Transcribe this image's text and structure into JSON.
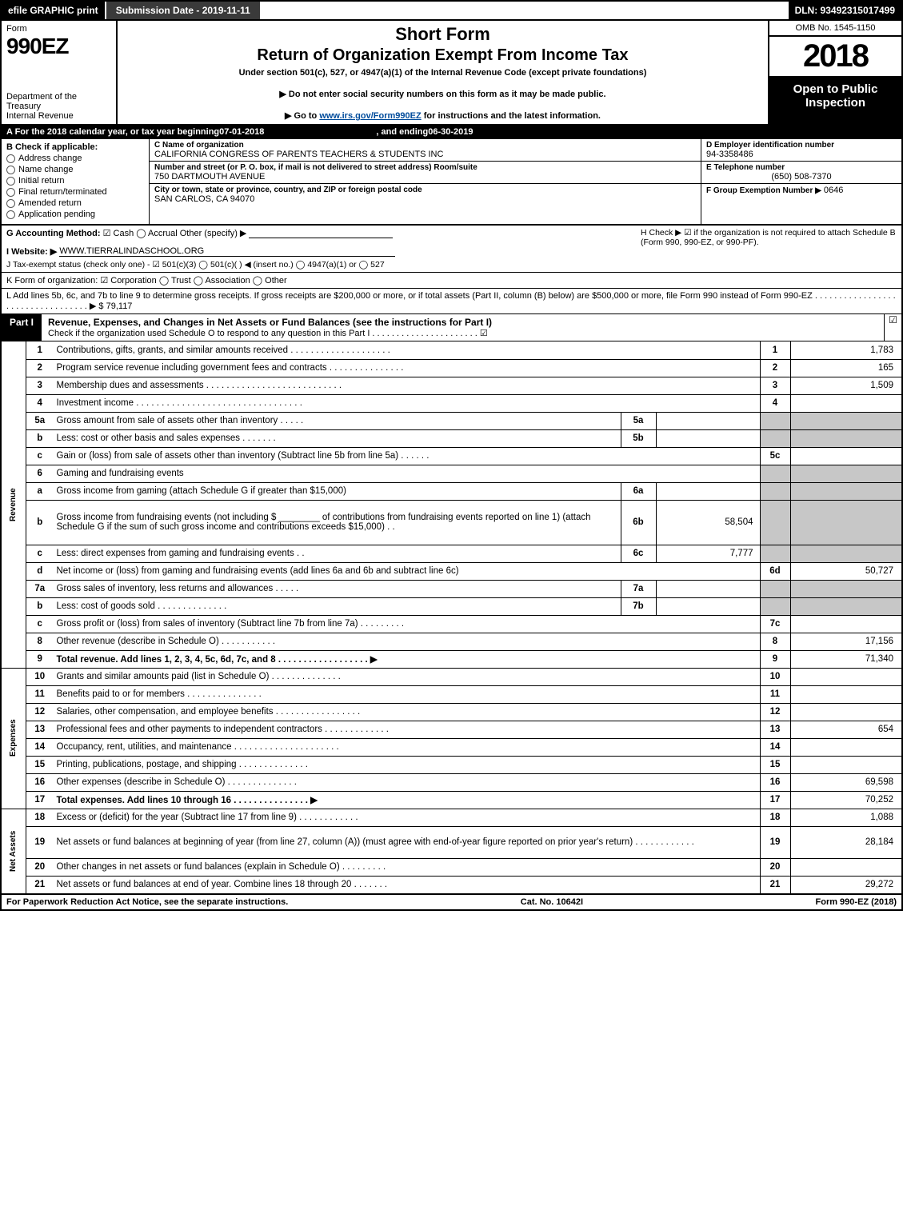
{
  "topbar": {
    "efile": "efile GRAPHIC print",
    "subdate": "Submission Date - 2019-11-11",
    "dln": "DLN: 93492315017499"
  },
  "header": {
    "form_label": "Form",
    "form_number": "990EZ",
    "dept1": "Department of the Treasury",
    "dept2": "Internal Revenue",
    "title1": "Short Form",
    "title2": "Return of Organization Exempt From Income Tax",
    "subtitle": "Under section 501(c), 527, or 4947(a)(1) of the Internal Revenue Code (except private foundations)",
    "note1": "▶ Do not enter social security numbers on this form as it may be made public.",
    "note2_pre": "▶ Go to ",
    "note2_link": "www.irs.gov/Form990EZ",
    "note2_post": " for instructions and the latest information.",
    "omb": "OMB No. 1545-1150",
    "year": "2018",
    "open": "Open to Public Inspection"
  },
  "line_a": {
    "pre": "A  For the 2018 calendar year, or tax year beginning ",
    "begin": "07-01-2018",
    "mid": " , and ending ",
    "end": "06-30-2019"
  },
  "col_b": {
    "heading": "B  Check if applicable:",
    "items": [
      "Address change",
      "Name change",
      "Initial return",
      "Final return/terminated",
      "Amended return",
      "Application pending"
    ]
  },
  "col_c": {
    "name_lbl": "C Name of organization",
    "name_val": "CALIFORNIA CONGRESS OF PARENTS TEACHERS & STUDENTS INC",
    "street_lbl": "Number and street (or P. O. box, if mail is not delivered to street address)      Room/suite",
    "street_val": "750 DARTMOUTH AVENUE",
    "city_lbl": "City or town, state or province, country, and ZIP or foreign postal code",
    "city_val": "SAN CARLOS, CA  94070"
  },
  "col_d": {
    "ein_lbl": "D Employer identification number",
    "ein_val": "94-3358486",
    "tel_lbl": "E Telephone number",
    "tel_val": "(650) 508-7370",
    "grp_lbl": "F Group Exemption Number   ▶",
    "grp_val": "0646"
  },
  "row_gh": {
    "g_lbl": "G Accounting Method:",
    "g_opts": "☑ Cash   ◯ Accrual   Other (specify) ▶",
    "h_text": "H  Check ▶ ☑ if the organization is not required to attach Schedule B (Form 990, 990-EZ, or 990-PF)."
  },
  "row_i": {
    "lbl": "I Website: ▶",
    "val": "WWW.TIERRALINDASCHOOL.ORG"
  },
  "row_j": {
    "text": "J Tax-exempt status (check only one) - ☑ 501(c)(3)  ◯ 501(c)(  ) ◀ (insert no.)  ◯ 4947(a)(1) or  ◯ 527"
  },
  "row_k": {
    "text": "K Form of organization:   ☑ Corporation   ◯ Trust   ◯ Association   ◯ Other"
  },
  "row_l": {
    "text": "L Add lines 5b, 6c, and 7b to line 9 to determine gross receipts. If gross receipts are $200,000 or more, or if total assets (Part II, column (B) below) are $500,000 or more, file Form 990 instead of Form 990-EZ . . . . . . . . . . . . . . . . . . . . . . . . . . . . . . . . . . ▶ $ 79,117"
  },
  "part1": {
    "tag": "Part I",
    "title": "Revenue, Expenses, and Changes in Net Assets or Fund Balances (see the instructions for Part I)",
    "sub": "Check if the organization used Schedule O to respond to any question in this Part I . . . . . . . . . . . . . . . . . . . . . . ☑"
  },
  "sections": {
    "rev": "Revenue",
    "exp": "Expenses",
    "net": "Net Assets"
  },
  "lines": [
    {
      "sect": "rev",
      "ln": "1",
      "desc": "Contributions, gifts, grants, and similar amounts received . . . . . . . . . . . . . . . . . . . .",
      "num": "1",
      "amt": "1,783"
    },
    {
      "sect": "rev",
      "ln": "2",
      "desc": "Program service revenue including government fees and contracts . . . . . . . . . . . . . . .",
      "num": "2",
      "amt": "165"
    },
    {
      "sect": "rev",
      "ln": "3",
      "desc": "Membership dues and assessments . . . . . . . . . . . . . . . . . . . . . . . . . . .",
      "num": "3",
      "amt": "1,509"
    },
    {
      "sect": "rev",
      "ln": "4",
      "desc": "Investment income . . . . . . . . . . . . . . . . . . . . . . . . . . . . . . . . .",
      "num": "4",
      "amt": ""
    },
    {
      "sect": "rev",
      "ln": "5a",
      "desc": "Gross amount from sale of assets other than inventory . . . . .",
      "sc": "5a",
      "sv": "",
      "shade": true
    },
    {
      "sect": "rev",
      "ln": "b",
      "desc": "Less: cost or other basis and sales expenses . . . . . . .",
      "sc": "5b",
      "sv": "",
      "shade": true
    },
    {
      "sect": "rev",
      "ln": "c",
      "desc": "Gain or (loss) from sale of assets other than inventory (Subtract line 5b from line 5a) . . . . . .",
      "num": "5c",
      "amt": ""
    },
    {
      "sect": "rev",
      "ln": "6",
      "desc": "Gaming and fundraising events",
      "shade": true,
      "nonumcol": true
    },
    {
      "sect": "rev",
      "ln": "a",
      "desc": "Gross income from gaming (attach Schedule G if greater than $15,000)",
      "sc": "6a",
      "sv": "",
      "shade": true
    },
    {
      "sect": "rev",
      "ln": "b",
      "desc": "Gross income from fundraising events (not including $ ________ of contributions from fundraising events reported on line 1) (attach Schedule G if the sum of such gross income and contributions exceeds $15,000)    .  .",
      "sc": "6b",
      "sv": "58,504",
      "shade": true,
      "tall": true
    },
    {
      "sect": "rev",
      "ln": "c",
      "desc": "Less: direct expenses from gaming and fundraising events    .  .",
      "sc": "6c",
      "sv": "7,777",
      "shade": true
    },
    {
      "sect": "rev",
      "ln": "d",
      "desc": "Net income or (loss) from gaming and fundraising events (add lines 6a and 6b and subtract line 6c)",
      "num": "6d",
      "amt": "50,727"
    },
    {
      "sect": "rev",
      "ln": "7a",
      "desc": "Gross sales of inventory, less returns and allowances . . . . .",
      "sc": "7a",
      "sv": "",
      "shade": true
    },
    {
      "sect": "rev",
      "ln": "b",
      "desc": "Less: cost of goods sold      . . . . . . . . . . . . . .",
      "sc": "7b",
      "sv": "",
      "shade": true
    },
    {
      "sect": "rev",
      "ln": "c",
      "desc": "Gross profit or (loss) from sales of inventory (Subtract line 7b from line 7a) . . . . . . . . .",
      "num": "7c",
      "amt": ""
    },
    {
      "sect": "rev",
      "ln": "8",
      "desc": "Other revenue (describe in Schedule O)        . . . . . . . . . . .",
      "num": "8",
      "amt": "17,156"
    },
    {
      "sect": "rev",
      "ln": "9",
      "desc": "Total revenue. Add lines 1, 2, 3, 4, 5c, 6d, 7c, and 8 . . . . . . . . . . . . . . . . . . ▶",
      "num": "9",
      "amt": "71,340",
      "bold": true
    },
    {
      "sect": "exp",
      "ln": "10",
      "desc": "Grants and similar amounts paid (list in Schedule O)     . . . . . . . . . . . . . .",
      "num": "10",
      "amt": ""
    },
    {
      "sect": "exp",
      "ln": "11",
      "desc": "Benefits paid to or for members      . . . . . . . . . . . . . . .",
      "num": "11",
      "amt": ""
    },
    {
      "sect": "exp",
      "ln": "12",
      "desc": "Salaries, other compensation, and employee benefits . . . . . . . . . . . . . . . . .",
      "num": "12",
      "amt": ""
    },
    {
      "sect": "exp",
      "ln": "13",
      "desc": "Professional fees and other payments to independent contractors . . . . . . . . . . . . .",
      "num": "13",
      "amt": "654"
    },
    {
      "sect": "exp",
      "ln": "14",
      "desc": "Occupancy, rent, utilities, and maintenance . . . . . . . . . . . . . . . . . . . . .",
      "num": "14",
      "amt": ""
    },
    {
      "sect": "exp",
      "ln": "15",
      "desc": "Printing, publications, postage, and shipping     . . . . . . . . . . . . . .",
      "num": "15",
      "amt": ""
    },
    {
      "sect": "exp",
      "ln": "16",
      "desc": "Other expenses (describe in Schedule O)     . . . . . . . . . . . . . .",
      "num": "16",
      "amt": "69,598"
    },
    {
      "sect": "exp",
      "ln": "17",
      "desc": "Total expenses. Add lines 10 through 16     . . . . . . . . . . . . . . . ▶",
      "num": "17",
      "amt": "70,252",
      "bold": true
    },
    {
      "sect": "net",
      "ln": "18",
      "desc": "Excess or (deficit) for the year (Subtract line 17 from line 9)    . . . . . . . . . . . .",
      "num": "18",
      "amt": "1,088"
    },
    {
      "sect": "net",
      "ln": "19",
      "desc": "Net assets or fund balances at beginning of year (from line 27, column (A)) (must agree with end-of-year figure reported on prior year's return)    . . . . . . . . . . . .",
      "num": "19",
      "amt": "28,184",
      "tall": true
    },
    {
      "sect": "net",
      "ln": "20",
      "desc": "Other changes in net assets or fund balances (explain in Schedule O)   . . . . . . . . .",
      "num": "20",
      "amt": ""
    },
    {
      "sect": "net",
      "ln": "21",
      "desc": "Net assets or fund balances at end of year. Combine lines 18 through 20    . . . . . . .",
      "num": "21",
      "amt": "29,272"
    }
  ],
  "footer": {
    "left": "For Paperwork Reduction Act Notice, see the separate instructions.",
    "mid": "Cat. No. 10642I",
    "right": "Form 990-EZ (2018)"
  },
  "colors": {
    "shade": "#c7c7c7",
    "black": "#000000",
    "link": "#004b9b"
  }
}
